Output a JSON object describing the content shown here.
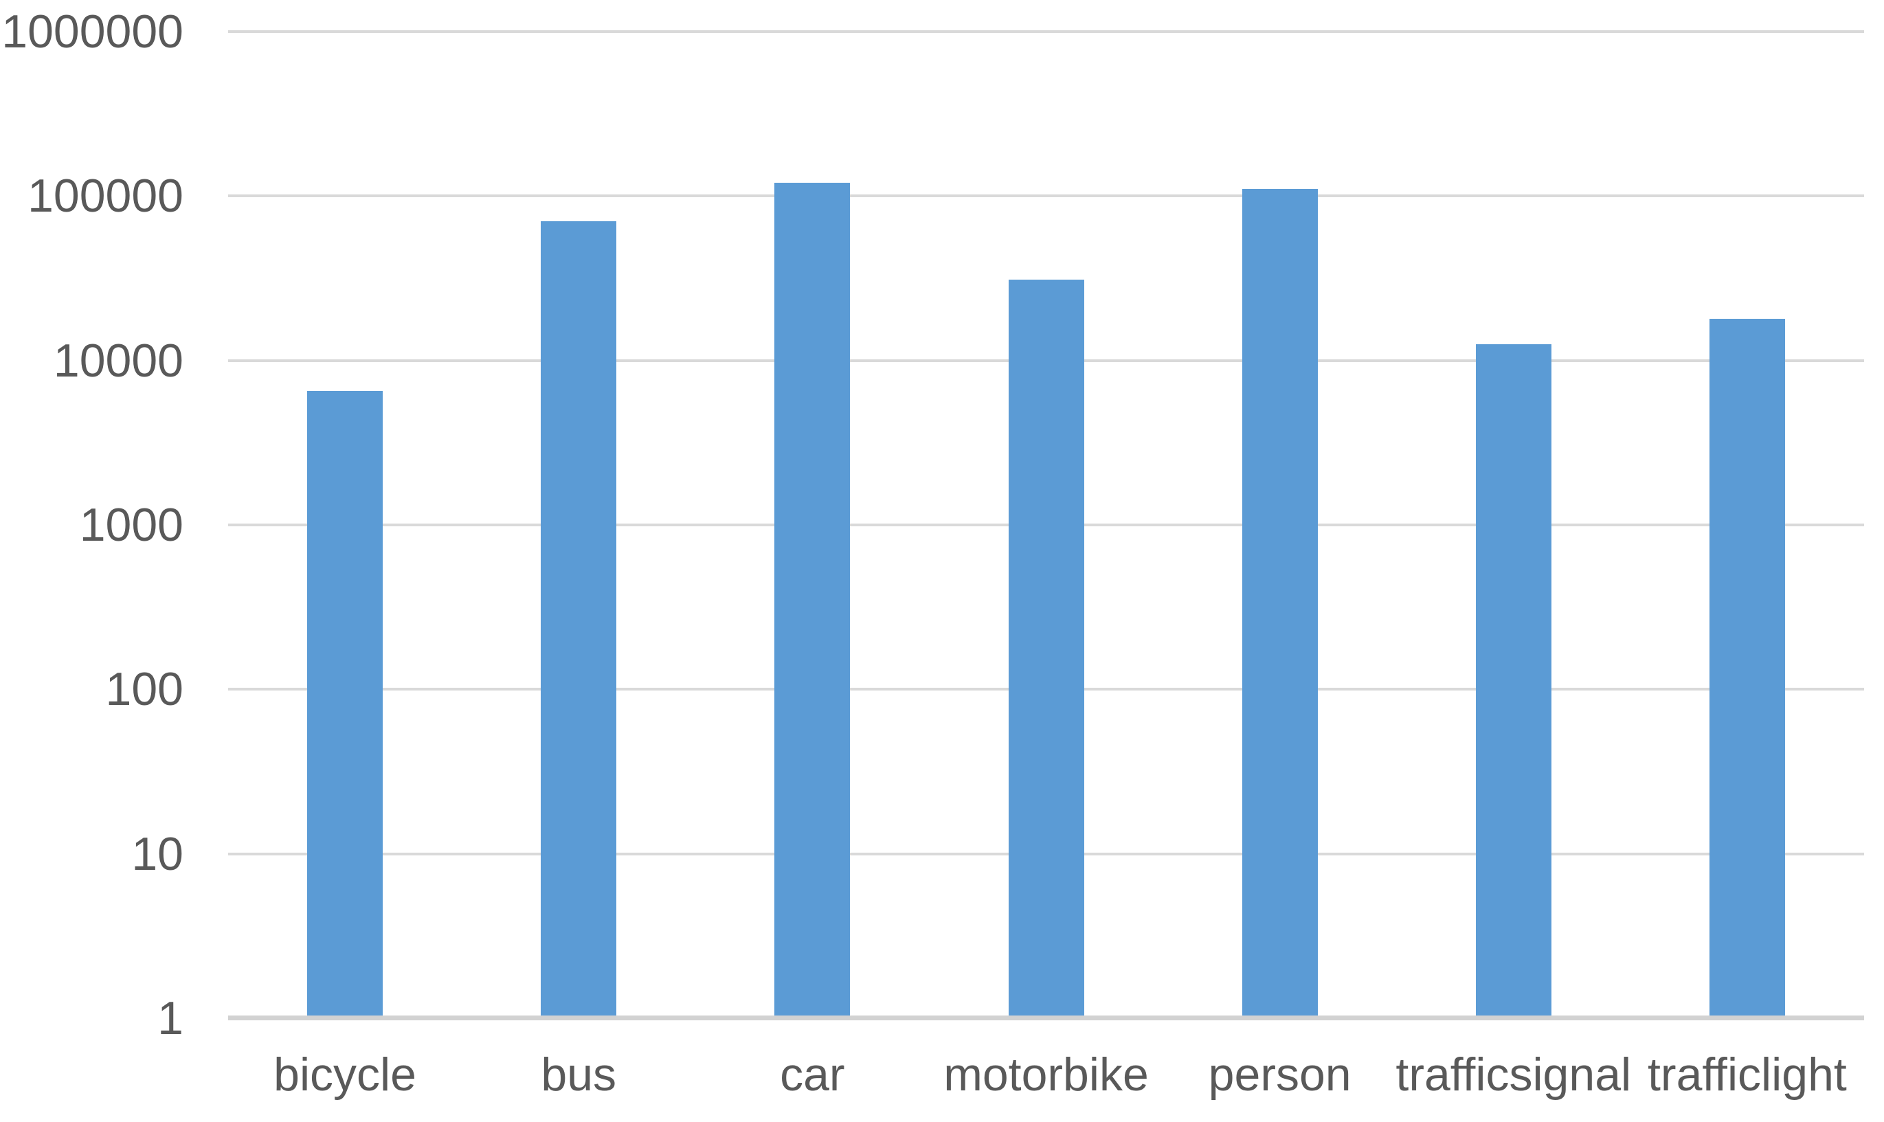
{
  "chart_data": {
    "type": "bar",
    "title": "",
    "xlabel": "",
    "ylabel": "",
    "categories": [
      "bicycle",
      "bus",
      "car",
      "motorbike",
      "person",
      "trafficsignal",
      "trafficlight"
    ],
    "values": [
      6500,
      70000,
      120000,
      31000,
      110000,
      12500,
      18000
    ],
    "y_scale": "log10",
    "ylim": [
      1,
      1000000
    ],
    "y_tick_labels": [
      "1",
      "10",
      "100",
      "1000",
      "10000",
      "100000",
      "1000000"
    ],
    "grid": true,
    "legend": false,
    "colors": {
      "bar": "#5B9BD5",
      "gridline": "#D9D9D9",
      "axis_line": "#D2D2D2",
      "tick_text": "#595959",
      "background": "#FFFFFF"
    }
  }
}
